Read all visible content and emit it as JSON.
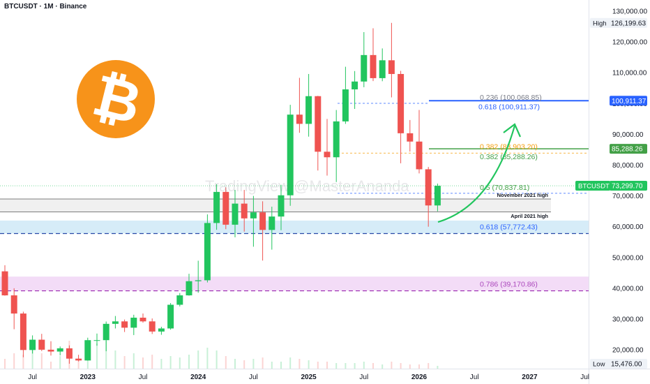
{
  "header": {
    "symbol_line": "BTCUSDT · 1M · Binance"
  },
  "watermark": "TradingView @MasterAnanda",
  "logo": {
    "name": "bitcoin-logo",
    "glyph": "₿",
    "color": "#f7931a"
  },
  "colors": {
    "up": "#22c55e",
    "down": "#ef5350",
    "fib_blue": "#2962ff",
    "fib_green": "#43a047",
    "fib_orange": "#f59e0b",
    "fib_purple": "#ab47bc",
    "grey": "#787b86"
  },
  "chart_data": {
    "type": "candlestick",
    "title": "BTCUSDT · 1M · Binance",
    "ylim": [
      14000,
      132000
    ],
    "price_axis": {
      "ticks": [
        "130,000.00",
        "120,000.00",
        "110,000.00",
        "100,000.00",
        "90,000.00",
        "80,000.00",
        "70,000.00",
        "60,000.00",
        "50,000.00",
        "40,000.00",
        "30,000.00",
        "20,000.00"
      ],
      "tick_values": [
        130000,
        120000,
        110000,
        100000,
        90000,
        80000,
        70000,
        60000,
        50000,
        40000,
        30000,
        20000
      ]
    },
    "time_axis": {
      "labels": [
        "Jul",
        "2023",
        "Jul",
        "2024",
        "Jul",
        "2025",
        "Jul",
        "2026",
        "Jul",
        "2027",
        "Jul"
      ],
      "label_months": [
        "2022-07",
        "2023-01",
        "2023-07",
        "2024-01",
        "2024-07",
        "2025-01",
        "2025-07",
        "2026-01",
        "2026-07",
        "2027-01",
        "2027-07"
      ],
      "bold": [
        "2023",
        "2024",
        "2025",
        "2026",
        "2027"
      ]
    },
    "candles": [
      {
        "date": "2022-04",
        "o": 45500,
        "h": 47500,
        "l": 37600,
        "c": 37700
      },
      {
        "date": "2022-05",
        "o": 37700,
        "h": 40000,
        "l": 26700,
        "c": 31800
      },
      {
        "date": "2022-06",
        "o": 31800,
        "h": 32400,
        "l": 17600,
        "c": 19950
      },
      {
        "date": "2022-07",
        "o": 19950,
        "h": 24700,
        "l": 18800,
        "c": 23300
      },
      {
        "date": "2022-08",
        "o": 23300,
        "h": 25200,
        "l": 19600,
        "c": 20050
      },
      {
        "date": "2022-09",
        "o": 20050,
        "h": 22800,
        "l": 18150,
        "c": 19450
      },
      {
        "date": "2022-10",
        "o": 19450,
        "h": 21100,
        "l": 18200,
        "c": 20500
      },
      {
        "date": "2022-11",
        "o": 20500,
        "h": 21450,
        "l": 15500,
        "c": 17150
      },
      {
        "date": "2022-12",
        "o": 17150,
        "h": 18400,
        "l": 16250,
        "c": 16550
      },
      {
        "date": "2023-01",
        "o": 16550,
        "h": 23950,
        "l": 16500,
        "c": 23150
      },
      {
        "date": "2023-02",
        "o": 23150,
        "h": 25300,
        "l": 21350,
        "c": 23150
      },
      {
        "date": "2023-03",
        "o": 23150,
        "h": 29200,
        "l": 19550,
        "c": 28450
      },
      {
        "date": "2023-04",
        "o": 28450,
        "h": 31000,
        "l": 26950,
        "c": 29250
      },
      {
        "date": "2023-05",
        "o": 29250,
        "h": 29850,
        "l": 25800,
        "c": 27200
      },
      {
        "date": "2023-06",
        "o": 27200,
        "h": 31400,
        "l": 24800,
        "c": 30450
      },
      {
        "date": "2023-07",
        "o": 30450,
        "h": 31800,
        "l": 28850,
        "c": 29250
      },
      {
        "date": "2023-08",
        "o": 29250,
        "h": 30200,
        "l": 25150,
        "c": 25950
      },
      {
        "date": "2023-09",
        "o": 25950,
        "h": 27500,
        "l": 24900,
        "c": 26950
      },
      {
        "date": "2023-10",
        "o": 26950,
        "h": 35200,
        "l": 26550,
        "c": 34650
      },
      {
        "date": "2023-11",
        "o": 34650,
        "h": 38450,
        "l": 34100,
        "c": 37700
      },
      {
        "date": "2023-12",
        "o": 37700,
        "h": 44700,
        "l": 37600,
        "c": 42300
      },
      {
        "date": "2024-01",
        "o": 42300,
        "h": 48950,
        "l": 38550,
        "c": 42600
      },
      {
        "date": "2024-02",
        "o": 42600,
        "h": 64000,
        "l": 41900,
        "c": 61200
      },
      {
        "date": "2024-03",
        "o": 61200,
        "h": 73800,
        "l": 59000,
        "c": 71300
      },
      {
        "date": "2024-04",
        "o": 71300,
        "h": 72800,
        "l": 59200,
        "c": 60650
      },
      {
        "date": "2024-05",
        "o": 60650,
        "h": 71950,
        "l": 56550,
        "c": 67500
      },
      {
        "date": "2024-06",
        "o": 67500,
        "h": 71950,
        "l": 58400,
        "c": 62700
      },
      {
        "date": "2024-07",
        "o": 62700,
        "h": 70000,
        "l": 53500,
        "c": 64650
      },
      {
        "date": "2024-08",
        "o": 64650,
        "h": 68250,
        "l": 49000,
        "c": 58950
      },
      {
        "date": "2024-09",
        "o": 58950,
        "h": 66500,
        "l": 52550,
        "c": 63300
      },
      {
        "date": "2024-10",
        "o": 63300,
        "h": 73600,
        "l": 58850,
        "c": 70200
      },
      {
        "date": "2024-11",
        "o": 70200,
        "h": 99600,
        "l": 66800,
        "c": 96400
      },
      {
        "date": "2024-12",
        "o": 96400,
        "h": 108350,
        "l": 90500,
        "c": 93400
      },
      {
        "date": "2025-01",
        "o": 93400,
        "h": 109600,
        "l": 89250,
        "c": 102400
      },
      {
        "date": "2025-02",
        "o": 102400,
        "h": 102500,
        "l": 78250,
        "c": 84350
      },
      {
        "date": "2025-03",
        "o": 84350,
        "h": 95000,
        "l": 76600,
        "c": 82550
      },
      {
        "date": "2025-04",
        "o": 82550,
        "h": 97900,
        "l": 74500,
        "c": 94200
      },
      {
        "date": "2025-05",
        "o": 94200,
        "h": 111950,
        "l": 93400,
        "c": 104600
      },
      {
        "date": "2025-06",
        "o": 104600,
        "h": 110550,
        "l": 98250,
        "c": 107150
      },
      {
        "date": "2025-07",
        "o": 107150,
        "h": 123200,
        "l": 105300,
        "c": 115750
      },
      {
        "date": "2025-08",
        "o": 115750,
        "h": 124450,
        "l": 107300,
        "c": 108250
      },
      {
        "date": "2025-09",
        "o": 108250,
        "h": 117900,
        "l": 107250,
        "c": 114050
      },
      {
        "date": "2025-10",
        "o": 114050,
        "h": 126200,
        "l": 102000,
        "c": 109600
      },
      {
        "date": "2025-11",
        "o": 109600,
        "h": 110600,
        "l": 80600,
        "c": 90350
      },
      {
        "date": "2025-12",
        "o": 90350,
        "h": 94650,
        "l": 84400,
        "c": 87650
      },
      {
        "date": "2026-01",
        "o": 87650,
        "h": 97900,
        "l": 77300,
        "c": 78650
      },
      {
        "date": "2026-02",
        "o": 78650,
        "h": 79400,
        "l": 60000,
        "c": 66900
      },
      {
        "date": "2026-03",
        "o": 66900,
        "h": 74000,
        "l": 65000,
        "c": 73299.7
      }
    ],
    "volumes": [
      0.14,
      0.22,
      0.2,
      0.3,
      0.22,
      0.1,
      0.18,
      0.4,
      0.12,
      0.3,
      0.36,
      0.4,
      0.26,
      0.18,
      0.22,
      0.16,
      0.2,
      0.14,
      0.18,
      0.16,
      0.2,
      0.26,
      0.3,
      0.26,
      0.18,
      0.14,
      0.12,
      0.14,
      0.16,
      0.1,
      0.1,
      0.16,
      0.14,
      0.12,
      0.1,
      0.1,
      0.08,
      0.08,
      0.08,
      0.1,
      0.08,
      0.06,
      0.1,
      0.08,
      0.06,
      0.06,
      0.08,
      0.04
    ],
    "axis_badges": [
      {
        "label": "High",
        "value": "126,199.63",
        "price": 126199.63,
        "style": "light"
      },
      {
        "label": "",
        "value": "100,911.37",
        "price": 100911.37,
        "style": "blue"
      },
      {
        "label": "",
        "value": "85,288.26",
        "price": 85288.26,
        "style": "green"
      },
      {
        "label": "BTCUSDT",
        "value": "73,299.70",
        "price": 73299.7,
        "style": "current"
      },
      {
        "label": "Low",
        "value": "15,476.00",
        "price": 15476.0,
        "style": "light"
      }
    ],
    "fib_labels": [
      {
        "text": "0.236 (100,068.85)",
        "price": 100068.85,
        "color": "#787b86"
      },
      {
        "text": "0.618 (100,911.37)",
        "price": 100911.37,
        "color": "#2962ff"
      },
      {
        "text": "0.382 (83,903.20)",
        "price": 83903.2,
        "color": "#f59e0b"
      },
      {
        "text": "0.382 (85,288.26)",
        "price": 85288.26,
        "color": "#43a047"
      },
      {
        "text": "0.5 (70,837.81)",
        "price": 70837.81,
        "color": "#43a047"
      },
      {
        "text": "0.618 (57,772.43)",
        "price": 57772.43,
        "color": "#2962ff"
      },
      {
        "text": "0.786 (39,170.86)",
        "price": 39170.86,
        "color": "#ab47bc"
      }
    ],
    "zones": [
      {
        "name": "high-2021-zone",
        "from": 64800,
        "to": 69000,
        "label": "November 2021 high"
      },
      {
        "name": "april-2021-zone",
        "from": 57800,
        "to": 62000,
        "label": "April 2021 high"
      },
      {
        "name": "purple-zone",
        "from": 39200,
        "to": 43800,
        "label": ""
      }
    ]
  }
}
